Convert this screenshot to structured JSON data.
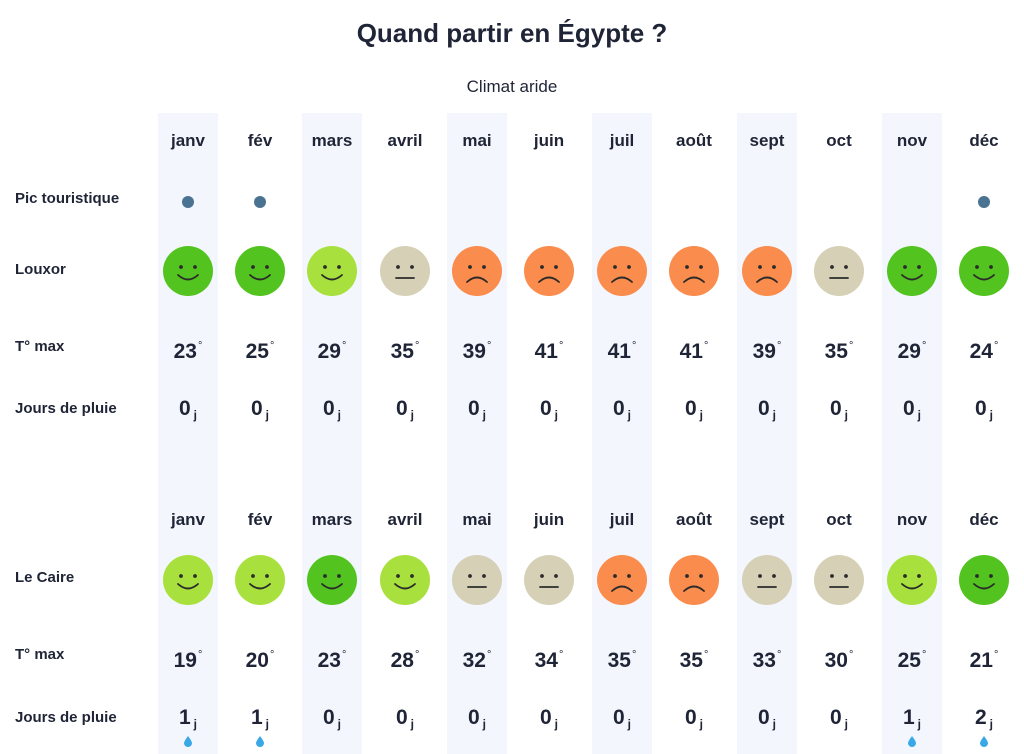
{
  "title": "Quand partir en Égypte ?",
  "subtitle": "Climat aride",
  "months": [
    "janv",
    "fév",
    "mars",
    "avril",
    "mai",
    "juin",
    "juil",
    "août",
    "sept",
    "oct",
    "nov",
    "déc"
  ],
  "rating_colors": {
    "great": "#53c41f",
    "good": "#a8e03d",
    "neutral": "#d6d0b6",
    "bad": "#fa8c4d"
  },
  "accent_dot_color": "#4a7392",
  "rain_drop_color": "#3aa8e6",
  "louxor": {
    "peak_label": "Pic touristique",
    "peak": [
      true,
      true,
      false,
      false,
      false,
      false,
      false,
      false,
      false,
      false,
      false,
      true
    ],
    "city_label": "Louxor",
    "ratings": [
      "great",
      "great",
      "good",
      "neutral",
      "bad",
      "bad",
      "bad",
      "bad",
      "bad",
      "neutral",
      "great",
      "great"
    ],
    "temp_label": "T° max",
    "temps": [
      "23",
      "25",
      "29",
      "35",
      "39",
      "41",
      "41",
      "41",
      "39",
      "35",
      "29",
      "24"
    ],
    "rain_label": "Jours de pluie",
    "rain_days": [
      "0",
      "0",
      "0",
      "0",
      "0",
      "0",
      "0",
      "0",
      "0",
      "0",
      "0",
      "0"
    ]
  },
  "caire": {
    "city_label": "Le Caire",
    "ratings": [
      "good",
      "good",
      "great",
      "good",
      "neutral",
      "neutral",
      "bad",
      "bad",
      "neutral",
      "neutral",
      "good",
      "great"
    ],
    "temp_label": "T° max",
    "temps": [
      "19",
      "20",
      "23",
      "28",
      "32",
      "34",
      "35",
      "35",
      "33",
      "30",
      "25",
      "21"
    ],
    "rain_label": "Jours de pluie",
    "rain_days": [
      "1",
      "1",
      "0",
      "0",
      "0",
      "0",
      "0",
      "0",
      "0",
      "0",
      "1",
      "2"
    ]
  },
  "degree_symbol": "°",
  "rain_unit": "j"
}
